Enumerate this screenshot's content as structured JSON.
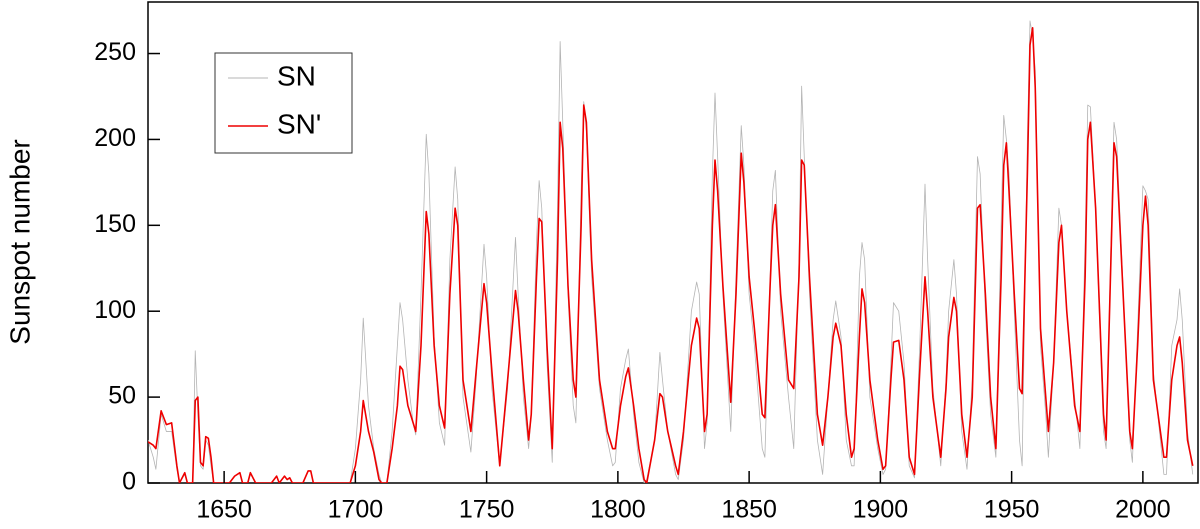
{
  "chart_data": {
    "type": "line",
    "y_label": "Sunspot number",
    "x": [
      1621,
      1623,
      1624,
      1626,
      1628,
      1630,
      1632,
      1633,
      1635,
      1636,
      1638,
      1639,
      1640,
      1641,
      1642,
      1643,
      1644,
      1645,
      1646,
      1652,
      1654,
      1656,
      1657,
      1659,
      1660,
      1661,
      1662,
      1668,
      1670,
      1671,
      1673,
      1674,
      1675,
      1676,
      1680,
      1682,
      1683,
      1684,
      1698,
      1700,
      1702,
      1703,
      1705,
      1707,
      1709,
      1710,
      1712,
      1714,
      1716,
      1717,
      1718,
      1720,
      1722,
      1723,
      1725,
      1727,
      1728,
      1730,
      1732,
      1734,
      1736,
      1738,
      1739,
      1741,
      1744,
      1746,
      1749,
      1750,
      1752,
      1755,
      1758,
      1761,
      1762,
      1764,
      1766,
      1767,
      1769,
      1770,
      1771,
      1773,
      1775,
      1777,
      1778,
      1779,
      1781,
      1783,
      1784,
      1786,
      1787,
      1788,
      1790,
      1793,
      1796,
      1798,
      1799,
      1801,
      1803,
      1804,
      1806,
      1808,
      1810,
      1811,
      1814,
      1816,
      1817,
      1819,
      1822,
      1823,
      1825,
      1828,
      1830,
      1831,
      1833,
      1834,
      1836,
      1837,
      1838,
      1840,
      1843,
      1845,
      1847,
      1848,
      1850,
      1852,
      1855,
      1856,
      1858,
      1859,
      1860,
      1862,
      1865,
      1867,
      1869,
      1870,
      1871,
      1873,
      1876,
      1878,
      1880,
      1882,
      1883,
      1885,
      1887,
      1889,
      1890,
      1892,
      1893,
      1894,
      1896,
      1899,
      1901,
      1902,
      1904,
      1905,
      1907,
      1909,
      1911,
      1913,
      1915,
      1917,
      1918,
      1920,
      1923,
      1925,
      1926,
      1928,
      1929,
      1931,
      1933,
      1935,
      1937,
      1938,
      1940,
      1942,
      1944,
      1946,
      1947,
      1948,
      1949,
      1951,
      1953,
      1954,
      1956,
      1957,
      1958,
      1959,
      1961,
      1963,
      1964,
      1966,
      1968,
      1969,
      1971,
      1974,
      1976,
      1978,
      1979,
      1980,
      1982,
      1985,
      1986,
      1988,
      1989,
      1990,
      1992,
      1995,
      1996,
      1998,
      2000,
      2001,
      2002,
      2004,
      2008,
      2009,
      2011,
      2013,
      2014,
      2015,
      2017,
      2019
    ],
    "series": [
      {
        "name": "SN",
        "color": "#b4b4b4",
        "values": [
          25,
          15,
          8,
          40,
          30,
          30,
          8,
          0,
          5,
          0,
          0,
          77,
          40,
          10,
          8,
          25,
          22,
          10,
          0,
          0,
          4,
          6,
          0,
          0,
          5,
          3,
          0,
          0,
          4,
          0,
          4,
          2,
          3,
          0,
          0,
          7,
          7,
          0,
          0,
          20,
          60,
          96,
          45,
          20,
          5,
          0,
          0,
          30,
          80,
          105,
          95,
          60,
          35,
          28,
          110,
          203,
          180,
          85,
          35,
          22,
          130,
          184,
          165,
          50,
          18,
          60,
          139,
          120,
          55,
          10,
          55,
          143,
          110,
          50,
          20,
          40,
          140,
          176,
          160,
          70,
          12,
          160,
          257,
          210,
          110,
          45,
          35,
          170,
          222,
          205,
          120,
          55,
          25,
          10,
          12,
          55,
          72,
          78,
          40,
          12,
          0,
          2,
          25,
          76,
          60,
          30,
          5,
          2,
          25,
          100,
          117,
          110,
          20,
          35,
          180,
          227,
          190,
          110,
          30,
          120,
          208,
          185,
          110,
          80,
          20,
          15,
          120,
          170,
          182,
          100,
          50,
          20,
          130,
          231,
          190,
          110,
          25,
          5,
          50,
          95,
          106,
          85,
          25,
          10,
          10,
          120,
          140,
          130,
          50,
          20,
          5,
          8,
          70,
          105,
          100,
          70,
          10,
          3,
          80,
          174,
          130,
          55,
          10,
          60,
          100,
          130,
          110,
          30,
          8,
          60,
          190,
          180,
          100,
          40,
          15,
          150,
          214,
          200,
          180,
          100,
          25,
          10,
          200,
          269,
          260,
          240,
          80,
          40,
          15,
          70,
          160,
          150,
          100,
          50,
          20,
          140,
          220,
          219,
          160,
          30,
          20,
          150,
          210,
          200,
          130,
          25,
          12,
          90,
          173,
          170,
          165,
          65,
          5,
          5,
          80,
          95,
          113,
          95,
          30,
          5
        ]
      },
      {
        "name": "SN'",
        "color": "#ee0000",
        "values": [
          24,
          22,
          20,
          42,
          34,
          35,
          10,
          0,
          6,
          0,
          0,
          48,
          50,
          12,
          10,
          27,
          26,
          15,
          0,
          0,
          4,
          6,
          0,
          0,
          6,
          3,
          0,
          0,
          4,
          0,
          4,
          2,
          3,
          0,
          0,
          7,
          7,
          0,
          0,
          10,
          30,
          48,
          30,
          18,
          2,
          0,
          0,
          20,
          45,
          68,
          66,
          45,
          35,
          30,
          80,
          158,
          145,
          80,
          45,
          32,
          110,
          160,
          150,
          60,
          30,
          65,
          116,
          105,
          65,
          10,
          60,
          112,
          100,
          60,
          25,
          40,
          120,
          154,
          152,
          80,
          20,
          130,
          210,
          195,
          115,
          60,
          50,
          150,
          220,
          210,
          130,
          60,
          30,
          20,
          20,
          45,
          62,
          67,
          45,
          20,
          2,
          0,
          25,
          52,
          50,
          30,
          10,
          5,
          30,
          80,
          96,
          90,
          30,
          40,
          150,
          188,
          170,
          115,
          47,
          110,
          192,
          175,
          120,
          90,
          40,
          38,
          115,
          150,
          162,
          110,
          60,
          55,
          120,
          188,
          185,
          120,
          40,
          22,
          50,
          85,
          93,
          80,
          40,
          15,
          20,
          85,
          113,
          105,
          60,
          25,
          8,
          10,
          60,
          82,
          83,
          60,
          15,
          5,
          65,
          120,
          100,
          50,
          15,
          55,
          85,
          108,
          100,
          40,
          15,
          50,
          160,
          162,
          110,
          50,
          20,
          120,
          185,
          198,
          170,
          110,
          55,
          52,
          180,
          255,
          265,
          230,
          90,
          50,
          30,
          70,
          140,
          150,
          100,
          45,
          30,
          120,
          200,
          210,
          160,
          40,
          25,
          140,
          198,
          190,
          125,
          30,
          20,
          80,
          150,
          167,
          150,
          60,
          15,
          15,
          60,
          80,
          85,
          70,
          25,
          10
        ]
      }
    ],
    "xlim": [
      1621,
      2021
    ],
    "ylim": [
      0,
      280
    ],
    "xticks": [
      1650,
      1700,
      1750,
      1800,
      1850,
      1900,
      1950,
      2000
    ],
    "yticks": [
      0,
      50,
      100,
      150,
      200,
      250
    ],
    "legend": "upper left"
  }
}
